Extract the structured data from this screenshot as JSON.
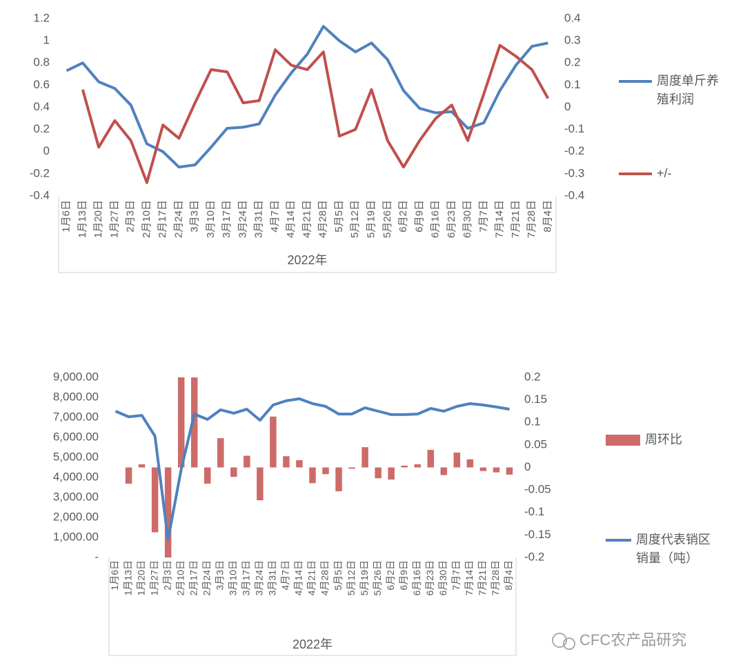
{
  "chart_data": [
    {
      "type": "line",
      "xlabel": "2022年",
      "categories": [
        "1月6日",
        "1月13日",
        "1月20日",
        "1月27日",
        "2月3日",
        "2月10日",
        "2月17日",
        "2月24日",
        "3月3日",
        "3月10日",
        "3月17日",
        "3月24日",
        "3月31日",
        "4月7日",
        "4月14日",
        "4月21日",
        "4月28日",
        "5月5日",
        "5月12日",
        "5月19日",
        "5月26日",
        "6月2日",
        "6月9日",
        "6月16日",
        "6月23日",
        "6月30日",
        "7月7日",
        "7月14日",
        "7月21日",
        "7月28日",
        "8月4日"
      ],
      "series": [
        {
          "name": "周度单斤养殖利润",
          "color": "#4f81bd",
          "values": [
            0.73,
            0.8,
            0.63,
            0.57,
            0.42,
            0.07,
            0.0,
            -0.14,
            -0.12,
            0.04,
            0.21,
            0.22,
            0.25,
            0.51,
            0.71,
            0.88,
            1.13,
            1.0,
            0.9,
            0.98,
            0.83,
            0.55,
            0.39,
            0.35,
            0.36,
            0.21,
            0.26,
            0.55,
            0.78,
            0.95,
            0.98
          ]
        },
        {
          "name": "+/-",
          "color": "#c0504d",
          "axis": "y2",
          "values": [
            null,
            0.08,
            -0.18,
            -0.06,
            -0.15,
            -0.34,
            -0.08,
            -0.14,
            0.02,
            0.17,
            0.16,
            0.02,
            0.03,
            0.26,
            0.19,
            0.17,
            0.25,
            -0.13,
            -0.1,
            0.08,
            -0.15,
            -0.27,
            -0.15,
            -0.05,
            0.01,
            -0.15,
            0.06,
            0.28,
            0.23,
            0.17,
            0.04
          ]
        }
      ],
      "ylim": [
        -0.4,
        1.2
      ],
      "yticks": [
        -0.4,
        -0.2,
        0,
        0.2,
        0.4,
        0.6,
        0.8,
        1,
        1.2
      ],
      "y2lim": [
        -0.4,
        0.4
      ],
      "y2ticks": [
        -0.4,
        -0.3,
        -0.2,
        -0.1,
        0,
        0.1,
        0.2,
        0.3,
        0.4
      ],
      "legend": "right"
    },
    {
      "type": "bar",
      "xlabel": "2022年",
      "categories": [
        "1月6日",
        "1月13日",
        "1月20日",
        "1月27日",
        "2月3日",
        "2月10日",
        "2月17日",
        "2月24日",
        "3月3日",
        "3月10日",
        "3月17日",
        "3月24日",
        "3月31日",
        "4月7日",
        "4月14日",
        "4月21日",
        "4月28日",
        "5月5日",
        "5月12日",
        "5月19日",
        "5月26日",
        "6月2日",
        "6月9日",
        "6月16日",
        "6月23日",
        "6月30日",
        "7月7日",
        "7月14日",
        "7月21日",
        "7月28日",
        "8月4日"
      ],
      "series": [
        {
          "name": "周环比",
          "type": "bar",
          "color": "#cd6b69",
          "axis": "y2",
          "values": [
            null,
            -0.036,
            0.007,
            -0.144,
            -0.2,
            0.2,
            0.2,
            -0.036,
            0.065,
            -0.021,
            0.026,
            -0.073,
            0.113,
            0.025,
            0.016,
            -0.035,
            -0.015,
            -0.053,
            -0.003,
            0.045,
            -0.024,
            -0.027,
            0.004,
            0.007,
            0.039,
            -0.017,
            0.033,
            0.018,
            -0.008,
            -0.011,
            -0.016
          ]
        },
        {
          "name": "周度代表销区销量（吨）",
          "type": "line",
          "color": "#4f81bd",
          "values": [
            7310,
            7030,
            7100,
            6070,
            900,
            4410,
            7170,
            6900,
            7380,
            7210,
            7410,
            6860,
            7620,
            7830,
            7930,
            7690,
            7550,
            7170,
            7170,
            7480,
            7310,
            7140,
            7140,
            7170,
            7450,
            7310,
            7550,
            7690,
            7620,
            7520,
            7410
          ]
        }
      ],
      "ylim": [
        0,
        9000
      ],
      "yticks": [
        {
          "value": 0,
          "label": "-"
        },
        {
          "value": 1000,
          "label": "1,000.00"
        },
        {
          "value": 2000,
          "label": "2,000.00"
        },
        {
          "value": 3000,
          "label": "3,000.00"
        },
        {
          "value": 4000,
          "label": "4,000.00"
        },
        {
          "value": 5000,
          "label": "5,000.00"
        },
        {
          "value": 6000,
          "label": "6,000.00"
        },
        {
          "value": 7000,
          "label": "7,000.00"
        },
        {
          "value": 8000,
          "label": "8,000.00"
        },
        {
          "value": 9000,
          "label": "9,000.00"
        }
      ],
      "y2lim": [
        -0.2,
        0.2
      ],
      "y2ticks": [
        -0.2,
        -0.15,
        -0.1,
        -0.05,
        0,
        0.05,
        0.1,
        0.15,
        0.2
      ],
      "legend": "right"
    }
  ],
  "watermark": "CFC农产品研究"
}
